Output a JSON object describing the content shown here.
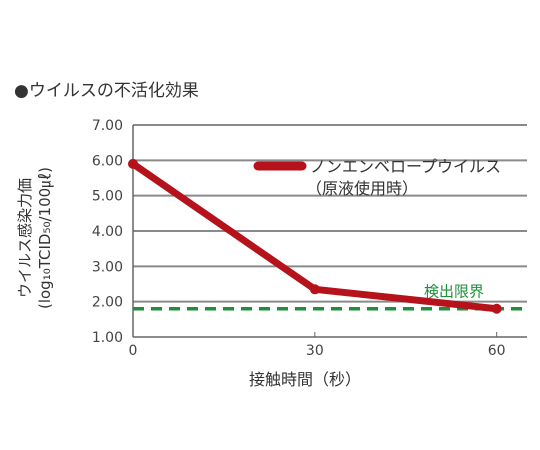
{
  "title": "●ウイルスの不活化効果",
  "chart_data": {
    "type": "line",
    "x": [
      0,
      30,
      60
    ],
    "x_ticks": [
      "0",
      "30",
      "60"
    ],
    "xlim": [
      0,
      65
    ],
    "xlabel": "接触時間（秒）",
    "ylabel_line1": "ウイルス感染力価",
    "ylabel_line2": "(log₁₀TCID₅₀/100㎕)",
    "y_ticks": [
      "1.00",
      "2.00",
      "3.00",
      "4.00",
      "5.00",
      "6.00",
      "7.00"
    ],
    "ylim": [
      1,
      7
    ],
    "grid": "horizontal",
    "series": [
      {
        "name": "ノンエンベロープウイルス",
        "name_sub": "（原液使用時）",
        "values": [
          5.9,
          2.35,
          1.8
        ],
        "color": "#b5121b"
      }
    ],
    "detection_limit": {
      "label": "検出限界",
      "value": 1.8,
      "color": "#1f8f3a"
    }
  }
}
